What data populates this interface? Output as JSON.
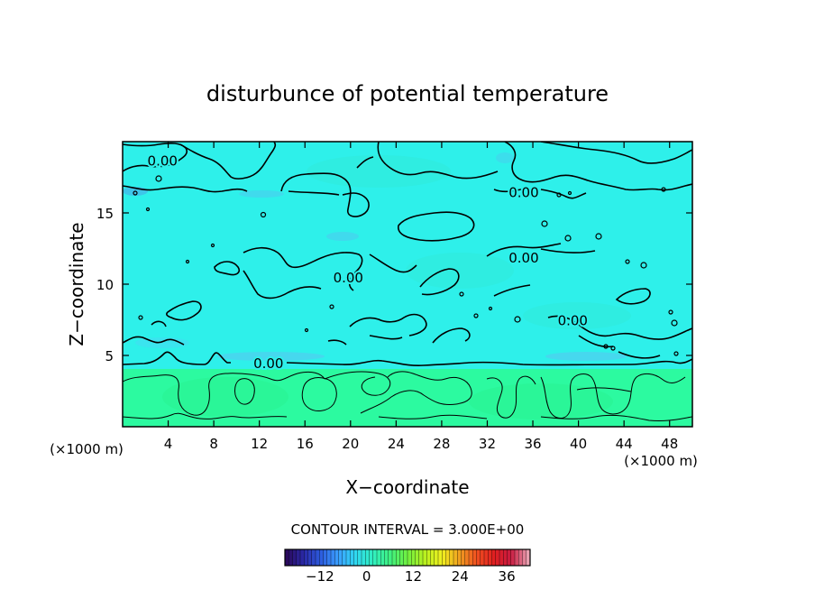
{
  "chart_data": {
    "type": "heatmap",
    "title": "disturbunce of potential temperature",
    "xlabel": "X−coordinate",
    "ylabel": "Z−coordinate",
    "x_unit": "(×1000 m)",
    "y_unit": "(×1000 m)",
    "xlim": [
      0,
      50
    ],
    "ylim": [
      0,
      20
    ],
    "x_ticks": [
      4,
      8,
      12,
      16,
      20,
      24,
      28,
      32,
      36,
      40,
      44,
      48
    ],
    "y_ticks": [
      5,
      10,
      15
    ],
    "contour_labels": [
      {
        "text": "0.00",
        "x": 3.5,
        "z": 18.7
      },
      {
        "text": "0.00",
        "x": 35.2,
        "z": 16.5
      },
      {
        "text": "0.00",
        "x": 35.2,
        "z": 11.9
      },
      {
        "text": "0.00",
        "x": 19.8,
        "z": 10.5
      },
      {
        "text": "0.00",
        "x": 39.5,
        "z": 7.5
      },
      {
        "text": "0.00",
        "x": 12.8,
        "z": 4.5
      }
    ],
    "contour_interval_text": "CONTOUR INTERVAL = 3.000E+00",
    "colorbar": {
      "min": -21,
      "max": 42,
      "ticks": [
        -12,
        0,
        12,
        24,
        36
      ],
      "colors": [
        "#2a0a5e",
        "#2a2aa8",
        "#2d5ee0",
        "#3aa0ff",
        "#30d8f0",
        "#30f0c0",
        "#40f080",
        "#70f040",
        "#b8f020",
        "#f0f020",
        "#f0a020",
        "#f05020",
        "#e02020",
        "#c81a40",
        "#e8a0b0"
      ]
    },
    "field": {
      "lower_layer": {
        "z_range": [
          0,
          4
        ],
        "color": "#2cfaa0"
      },
      "upper_layer": {
        "z_range": [
          4,
          20
        ],
        "color": "#2ef0ea"
      }
    }
  }
}
